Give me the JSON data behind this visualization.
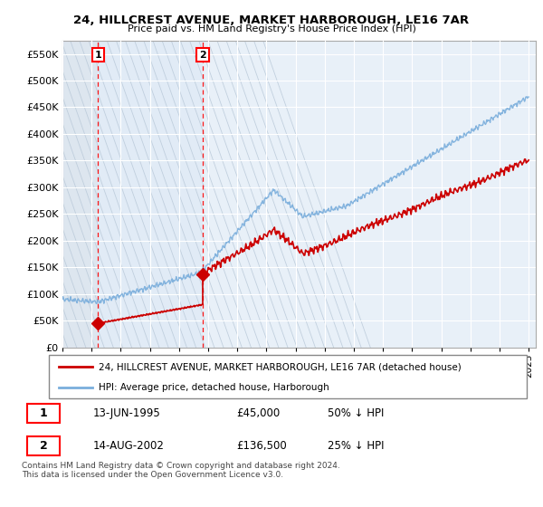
{
  "title": "24, HILLCREST AVENUE, MARKET HARBOROUGH, LE16 7AR",
  "subtitle": "Price paid vs. HM Land Registry's House Price Index (HPI)",
  "ylim": [
    0,
    575000
  ],
  "yticks": [
    0,
    50000,
    100000,
    150000,
    200000,
    250000,
    300000,
    350000,
    400000,
    450000,
    500000,
    550000
  ],
  "ytick_labels": [
    "£0",
    "£50K",
    "£100K",
    "£150K",
    "£200K",
    "£250K",
    "£300K",
    "£350K",
    "£400K",
    "£450K",
    "£500K",
    "£550K"
  ],
  "line1_color": "#cc0000",
  "line2_color": "#7aaedc",
  "marker_color": "#cc0000",
  "purchase1_date_num": 1995.45,
  "purchase1_price": 45000,
  "purchase2_date_num": 2002.62,
  "purchase2_price": 136500,
  "legend1_label": "24, HILLCREST AVENUE, MARKET HARBOROUGH, LE16 7AR (detached house)",
  "legend2_label": "HPI: Average price, detached house, Harborough",
  "annotation1_label": "1",
  "annotation2_label": "2",
  "table_row1": [
    "1",
    "13-JUN-1995",
    "£45,000",
    "50% ↓ HPI"
  ],
  "table_row2": [
    "2",
    "14-AUG-2002",
    "£136,500",
    "25% ↓ HPI"
  ],
  "footer": "Contains HM Land Registry data © Crown copyright and database right 2024.\nThis data is licensed under the Open Government Licence v3.0.",
  "hatch_bg_color": "#dde6ef",
  "plot_bg_color": "#e8f0f8",
  "highlight_bg_color": "#dce8f4",
  "xlim_left": 1993.0,
  "xlim_right": 2025.5,
  "xtick_start": 1993,
  "xtick_end": 2025,
  "xtick_step": 2
}
